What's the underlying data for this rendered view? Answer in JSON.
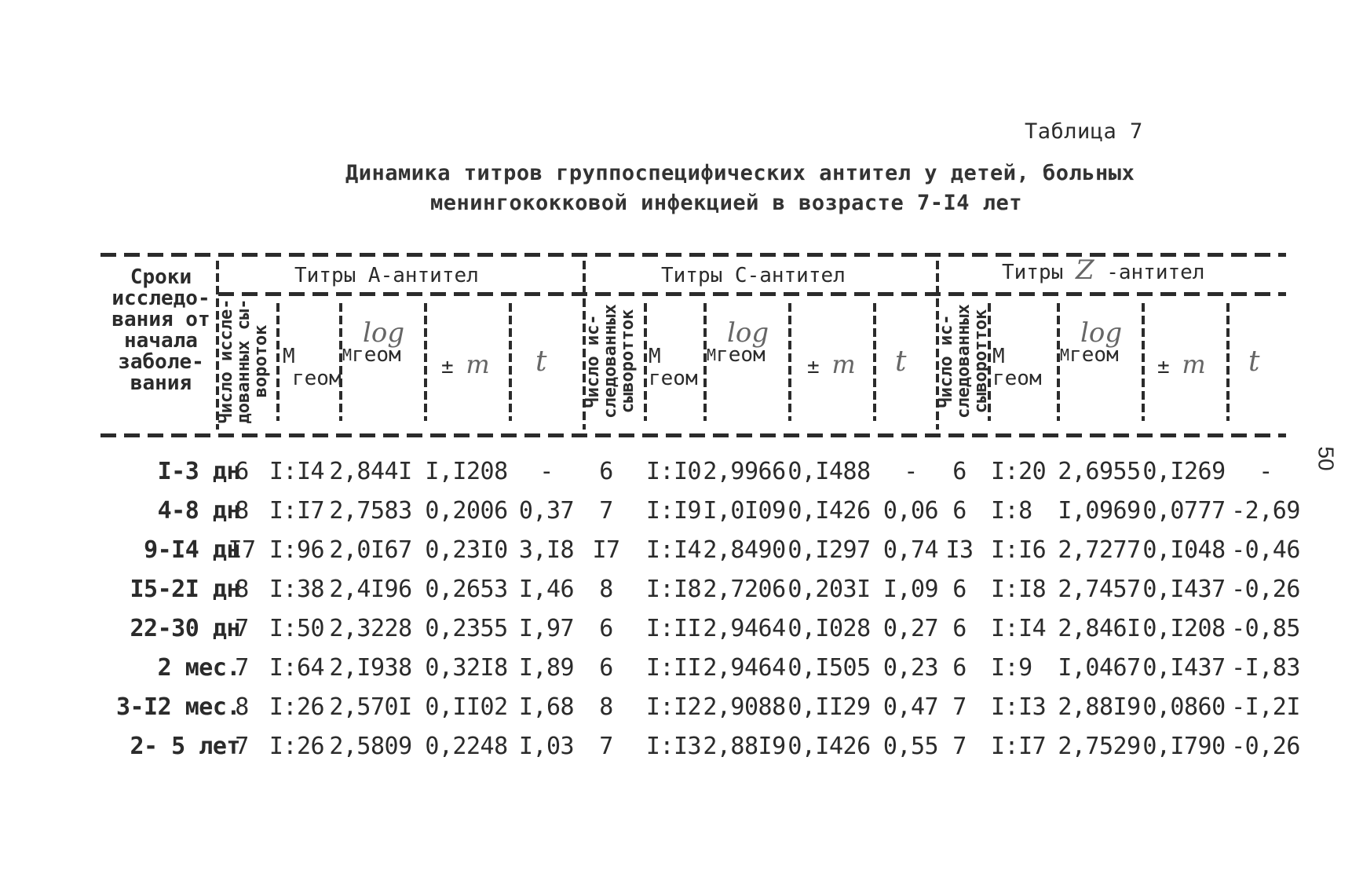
{
  "table_label": "Таблица 7",
  "title_line1": "Динамика титров группоспецифических антител у детей, больных",
  "title_line2": "менингококковой инфекцией в возрасте 7-I4 лет",
  "page_number": "50",
  "header": {
    "period": "Сроки\nисследо-\nвания от\nначала\nзаболе-\nвания",
    "group_a": "Титры А-антител",
    "group_c": "Титры С-антител",
    "group_z_prefix": "Титры",
    "group_z_hand": "Z",
    "group_z_suffix": "-антител",
    "count_a": "Число иссле-\nдованных сы-\nвороток",
    "count_c": "Число ис-\nследованных\nсыворотток",
    "count_z": "Число ис-\nследованных\nсыворотток",
    "m": "М",
    "geom": "геом",
    "log": "log",
    "pm": "±",
    "m_hand": "m",
    "t_hand": "t"
  },
  "rows": [
    [
      "I-3 дн",
      "6",
      "I:I4",
      "2,844I",
      "I,I208",
      "-",
      "6",
      "I:I0",
      "2,9966",
      "0,I488",
      "-",
      "6",
      "I:20",
      "2,6955",
      "0,I269",
      "-"
    ],
    [
      "4-8 дн",
      "8",
      "I:I7",
      "2,7583",
      "0,2006",
      "0,37",
      "7",
      "I:I9",
      "I,0I09",
      "0,I426",
      "0,06",
      "6",
      "I:8",
      "I,0969",
      "0,0777",
      "-2,69"
    ],
    [
      "9-I4 дн",
      "I7",
      "I:96",
      "2,0I67",
      "0,23I0",
      "3,I8",
      "I7",
      "I:I4",
      "2,8490",
      "0,I297",
      "0,74",
      "I3",
      "I:I6",
      "2,7277",
      "0,I048",
      "-0,46"
    ],
    [
      "I5-2I дн",
      "8",
      "I:38",
      "2,4I96",
      "0,2653",
      "I,46",
      "8",
      "I:I8",
      "2,7206",
      "0,203I",
      "I,09",
      "6",
      "I:I8",
      "2,7457",
      "0,I437",
      "-0,26"
    ],
    [
      "22-30 дн",
      "7",
      "I:50",
      "2,3228",
      "0,2355",
      "I,97",
      "6",
      "I:II",
      "2,9464",
      "0,I028",
      "0,27",
      "6",
      "I:I4",
      "2,846I",
      "0,I208",
      "-0,85"
    ],
    [
      "2 мес.",
      "7",
      "I:64",
      "2,I938",
      "0,32I8",
      "I,89",
      "6",
      "I:II",
      "2,9464",
      "0,I505",
      "0,23",
      "6",
      "I:9",
      "I,0467",
      "0,I437",
      "-I,83"
    ],
    [
      "3-I2 мес.",
      "8",
      "I:26",
      "2,570I",
      "0,II02",
      "I,68",
      "8",
      "I:I2",
      "2,9088",
      "0,II29",
      "0,47",
      "7",
      "I:I3",
      "2,88I9",
      "0,0860",
      "-I,2I"
    ],
    [
      "2- 5 лет",
      "7",
      "I:26",
      "2,5809",
      "0,2248",
      "I,03",
      "7",
      "I:I3",
      "2,88I9",
      "0,I426",
      "0,55",
      "7",
      "I:I7",
      "2,7529",
      "0,I790",
      "-0,26"
    ]
  ]
}
